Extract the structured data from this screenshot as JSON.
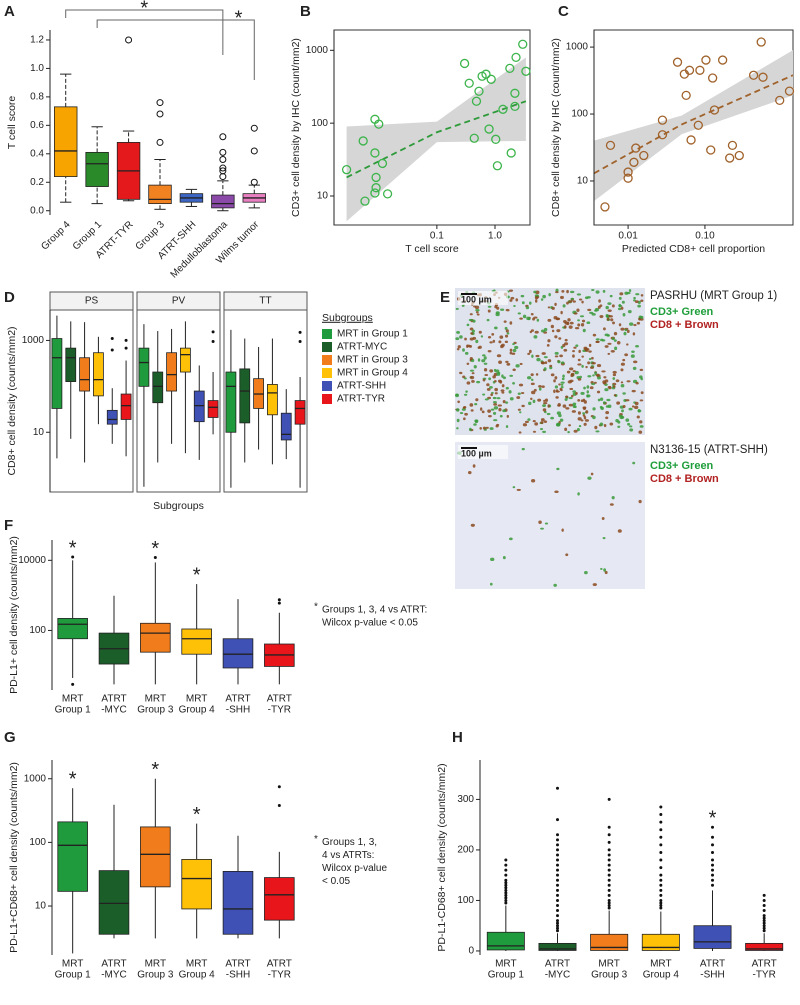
{
  "chart_data": [
    {
      "panel": "A",
      "type": "box",
      "ylabel": "T cell score",
      "categories": [
        "Group 4",
        "Group 1",
        "ATRT-TYR",
        "Group 3",
        "ATRT-SHH",
        "Medulloblastoma",
        "Wilms tumor"
      ],
      "colors": [
        "#f7a400",
        "#2a8a2a",
        "#e3191c",
        "#f08222",
        "#3d66c4",
        "#8b4aa8",
        "#e87fc0"
      ],
      "stats": [
        [
          0.06,
          0.24,
          0.42,
          0.73,
          0.96
        ],
        [
          0.05,
          0.17,
          0.33,
          0.41,
          0.59
        ],
        [
          0.07,
          0.08,
          0.28,
          0.48,
          0.56
        ],
        [
          0.01,
          0.05,
          0.08,
          0.18,
          0.36
        ],
        [
          0.03,
          0.06,
          0.09,
          0.12,
          0.15
        ],
        [
          0,
          0.02,
          0.05,
          0.11,
          0.21
        ],
        [
          0.02,
          0.06,
          0.09,
          0.12,
          0.18
        ]
      ],
      "outliers": [
        [],
        [],
        [
          1.2
        ],
        [
          0.48,
          0.68,
          0.76
        ],
        [],
        [
          0.24,
          0.28,
          0.3,
          0.36,
          0.41,
          0.52
        ],
        [
          0.2,
          0.42,
          0.58
        ]
      ],
      "outlier_marker": "open",
      "whisker_style": "dashed",
      "ylim": [
        -0.03,
        1.27
      ],
      "yticks": [
        {
          "value": 0,
          "label": "0.0"
        },
        0.2,
        0.4,
        0.6,
        0.8,
        {
          "value": 1,
          "label": "1.0"
        },
        1.2
      ],
      "annotations": [
        "*",
        "*"
      ]
    },
    {
      "panel": "B",
      "type": "scatter",
      "xlabel": "T cell score",
      "ylabel": "CD3+ cell density by IHC (count/mm2)",
      "color": "#3cb44b",
      "fit_color": "#2e9a3a",
      "band_color": "#d6d6d6",
      "x": [
        0.0028,
        0.0054,
        0.0058,
        0.0086,
        0.009,
        0.009,
        0.0086,
        0.0116,
        0.0142,
        0.0086,
        0.01,
        0.3,
        0.36,
        0.53,
        0.6,
        0.7,
        0.86,
        0.48,
        1.8,
        2.3,
        3.0,
        3.4,
        0.79,
        1.03,
        2.2,
        2.2,
        1.37,
        0.44,
        1.1,
        1.9
      ],
      "y": [
        23,
        57,
        8.5,
        39,
        18,
        13,
        11,
        28,
        10.7,
        113,
        97,
        660,
        353,
        274,
        440,
        470,
        400,
        200,
        565,
        800,
        1210,
        515,
        83,
        60,
        257,
        170,
        155,
        62,
        26,
        39
      ],
      "xlog": true,
      "ylog": true,
      "xlim": [
        0.0017,
        4
      ],
      "ylim": [
        4,
        1900
      ],
      "xticks": [
        0.1,
        {
          "value": 1,
          "label": "1.0"
        }
      ],
      "yticks": [
        10,
        100,
        1000
      ],
      "fit": {
        "x": [
          0.0028,
          0.1,
          3.4
        ],
        "y": [
          18,
          75,
          200
        ],
        "lower": [
          4.5,
          55,
          57
        ],
        "upper": [
          90,
          105,
          800
        ]
      }
    },
    {
      "panel": "C",
      "type": "scatter",
      "xlabel": "Predicted CD8+ cell proportion",
      "ylabel": "CD8+ cell density by IHC (count/mm2)",
      "color": "#a0622b",
      "fit_color": "#a0622b",
      "band_color": "#d6d6d6",
      "x": [
        0.005,
        0.0059,
        0.0119,
        0.0126,
        0.01,
        0.01,
        0.016,
        0.028,
        0.028,
        0.044,
        0.054,
        0.063,
        0.086,
        0.103,
        0.126,
        0.17,
        0.133,
        0.082,
        0.066,
        0.119,
        0.228,
        0.21,
        0.28,
        0.54,
        0.57,
        0.94,
        1.26,
        0.43,
        0.057
      ],
      "y": [
        4.1,
        34,
        19,
        31,
        13.6,
        11,
        24,
        49,
        81,
        595,
        395,
        450,
        450,
        640,
        345,
        640,
        115,
        68,
        41,
        29,
        34,
        22,
        24,
        1190,
        355,
        160,
        220,
        380,
        190
      ],
      "xlog": true,
      "ylog": true,
      "xlim": [
        0.0036,
        1.4
      ],
      "ylim": [
        2.2,
        1800
      ],
      "xticks": [
        0.01,
        {
          "value": 0.1,
          "label": "0.10"
        }
      ],
      "yticks": [
        10,
        100,
        1000
      ],
      "fit": {
        "x": [
          0.0036,
          0.05,
          1.4
        ],
        "y": [
          13,
          70,
          380
        ],
        "lower": [
          5,
          50,
          190
        ],
        "upper": [
          40,
          95,
          900
        ]
      }
    },
    {
      "panel": "D",
      "type": "box",
      "facets": [
        "PS",
        "PV",
        "TT"
      ],
      "xlabel": "Subgroups",
      "ylabel": "CD8+ cell density (counts/mm2)",
      "legend_title": "Subgroups",
      "ylog": true,
      "ylim": [
        0.5,
        4600
      ],
      "yticks": [
        10,
        1000
      ],
      "outlier_marker": "dot",
      "series": [
        {
          "name": "MRT in Group 1",
          "color": "#1f9a3c",
          "stats": [
            [
              2.7,
              33,
              420,
              1100,
              3470
            ],
            [
              0.65,
              100,
              330,
              680,
              2260
            ],
            [
              0.62,
              10,
              100,
              205,
              1700
            ]
          ],
          "outliers": [
            [],
            [],
            []
          ]
        },
        {
          "name": "ATRT-MYC",
          "color": "#1b5e2a",
          "stats": [
            [
              7.2,
              127,
              420,
              680,
              2600
            ],
            [
              2.2,
              44,
              100,
              205,
              1600
            ],
            [
              2.2,
              16,
              79,
              240,
              1100
            ]
          ],
          "outliers": [
            [],
            [],
            []
          ]
        },
        {
          "name": "MRT in Group 3",
          "color": "#f07c1b",
          "stats": [
            [
              2.2,
              79,
              140,
              420,
              2500
            ],
            [
              5.6,
              79,
              180,
              540,
              1780
            ],
            [
              4.2,
              33,
              68,
              147,
              720
            ]
          ],
          "outliers": [
            [],
            [],
            []
          ]
        },
        {
          "name": "MRT in Group 4",
          "color": "#ffc107",
          "stats": [
            [
              15,
              62,
              140,
              540,
              1200
            ],
            [
              3.5,
              205,
              490,
              680,
              2600
            ],
            [
              2,
              24,
              72,
              110,
              1100
            ]
          ],
          "outliers": [
            [],
            [],
            []
          ]
        },
        {
          "name": "ATRT-SHH",
          "color": "#3f51b5",
          "stats": [
            [
              5.6,
              15,
              19,
              30,
              91
            ],
            [
              2.5,
              17,
              38,
              79,
              285
            ],
            [
              2.6,
              6.8,
              9,
              26,
              87
            ]
          ],
          "outliers": [
            [
              620,
              1100
            ],
            [],
            []
          ]
        },
        {
          "name": "ATRT-TYR",
          "color": "#e8161b",
          "stats": [
            [
              3,
              19,
              38,
              68,
              365
            ],
            [
              9,
              21,
              35,
              49,
              205
            ],
            [
              0.62,
              15,
              33,
              49,
              160
            ]
          ],
          "outliers": [
            [
              680,
              1000
            ],
            [
              950,
              1540
            ],
            [
              950,
              1500
            ]
          ]
        }
      ]
    },
    {
      "panel": "F",
      "type": "box",
      "ylabel": "PD-L1+ cell density (counts/mm2)",
      "categories": [
        [
          "MRT",
          "Group 1"
        ],
        [
          "ATRT",
          "-MYC"
        ],
        [
          "MRT",
          "Group 3"
        ],
        [
          "MRT",
          "Group 4"
        ],
        [
          "ATRT",
          "-SHH"
        ],
        [
          "ATRT",
          "-TYR"
        ]
      ],
      "colors": [
        "#1f9a3c",
        "#1b5e2a",
        "#f07c1b",
        "#ffc107",
        "#3f51b5",
        "#e8161b"
      ],
      "stats": [
        [
          4.4,
          58,
          150,
          220,
          10000
        ],
        [
          2.9,
          11,
          30,
          84,
          975
        ],
        [
          2.9,
          24,
          84,
          160,
          8700
        ],
        [
          2.9,
          21,
          58,
          110,
          2100
        ],
        [
          2.9,
          8.5,
          21,
          58,
          780
        ],
        [
          2.9,
          9.4,
          20,
          41,
          320
        ]
      ],
      "outliers": [
        [
          12400,
          2.9
        ],
        [],
        [
          12000
        ],
        [],
        [],
        [
          750,
          600
        ]
      ],
      "outlier_marker": "dot",
      "markers": [
        "*",
        null,
        "*",
        "*",
        null,
        null
      ],
      "ylog": true,
      "ylim": [
        2,
        38000
      ],
      "yticks": [
        100,
        10000
      ],
      "note": [
        "*",
        "Groups 1, 3, 4 vs ATRT:",
        "Wilcox p-value < 0.05"
      ]
    },
    {
      "panel": "G",
      "type": "box",
      "ylabel": "PD-L1+CD68+ cell density (counts/mm2)",
      "categories": [
        [
          "MRT",
          "Group 1"
        ],
        [
          "ATRT",
          "-MYC"
        ],
        [
          "MRT",
          "Group 3"
        ],
        [
          "MRT",
          "Group 4"
        ],
        [
          "ATRT",
          "-SHH"
        ],
        [
          "ATRT",
          "-TYR"
        ]
      ],
      "colors": [
        "#1f9a3c",
        "#1b5e2a",
        "#f07c1b",
        "#ffc107",
        "#3f51b5",
        "#e8161b"
      ],
      "stats": [
        [
          1.8,
          17,
          90,
          210,
          710
        ],
        [
          3.1,
          3.6,
          11,
          36,
          390
        ],
        [
          3.1,
          20,
          65,
          175,
          1000
        ],
        [
          3.1,
          9,
          27,
          54,
          197
        ],
        [
          3.1,
          3.6,
          9,
          35,
          127
        ],
        [
          3.1,
          6,
          15,
          28,
          71
        ]
      ],
      "outliers": [
        [],
        [],
        [],
        [],
        [],
        [
          750,
          380
        ]
      ],
      "outlier_marker": "dot",
      "markers": [
        "*",
        null,
        "*",
        "*",
        null,
        null
      ],
      "ylog": true,
      "ylim": [
        1.7,
        1970
      ],
      "yticks": [
        10,
        100,
        1000
      ],
      "note": [
        "*",
        "Groups 1, 3,",
        "4 vs ATRTs:",
        "Wilcox p-value",
        "< 0.05"
      ]
    },
    {
      "panel": "H",
      "type": "box",
      "ylabel": "PD-L1-CD68+ cell density (counts/mm2)",
      "categories": [
        [
          "MRT",
          "Group 1"
        ],
        [
          "ATRT",
          "-MYC"
        ],
        [
          "MRT",
          "Group 3"
        ],
        [
          "MRT",
          "Group 4"
        ],
        [
          "ATRT",
          "-SHH"
        ],
        [
          "ATRT",
          "-TYR"
        ]
      ],
      "colors": [
        "#1f9a3c",
        "#1b5e2a",
        "#f07c1b",
        "#ffc107",
        "#3f51b5",
        "#e8161b"
      ],
      "stats": [
        [
          0,
          2,
          10,
          37,
          90
        ],
        [
          0,
          1,
          4,
          15,
          35
        ],
        [
          0,
          1,
          7,
          33,
          80
        ],
        [
          0,
          1,
          7,
          33,
          78
        ],
        [
          0,
          5,
          18,
          50,
          120
        ],
        [
          0,
          1,
          4,
          15,
          35
        ]
      ],
      "outliers": [
        [
          95,
          100,
          105,
          110,
          115,
          120,
          125,
          130,
          135,
          140,
          150,
          160,
          170,
          180
        ],
        [
          40,
          45,
          50,
          55,
          60,
          70,
          80,
          90,
          100,
          110,
          120,
          130,
          140,
          150,
          160,
          170,
          180,
          190,
          200,
          210,
          220,
          230,
          260,
          322
        ],
        [
          85,
          90,
          95,
          100,
          110,
          120,
          130,
          140,
          150,
          160,
          170,
          180,
          190,
          200,
          215,
          230,
          245,
          300
        ],
        [
          85,
          90,
          95,
          100,
          110,
          120,
          130,
          140,
          150,
          165,
          180,
          195,
          210,
          225,
          240,
          255,
          270,
          285
        ],
        [
          130,
          140,
          150,
          160,
          170,
          180,
          195,
          210,
          225,
          245
        ],
        [
          40,
          45,
          50,
          55,
          60,
          65,
          70,
          80,
          90,
          100,
          110
        ]
      ],
      "outlier_marker": "dot",
      "markers": [
        null,
        null,
        null,
        null,
        "*",
        null
      ],
      "ylim": [
        -8,
        378
      ],
      "yticks": [
        0,
        100,
        200,
        300
      ]
    }
  ],
  "panel_e": {
    "panel": "E",
    "images": [
      {
        "title": "PASRHU (MRT Group 1)",
        "scale_bar": "100 µm",
        "stains": [
          {
            "text": "CD3+ Green",
            "color": "#1e9e3a"
          },
          {
            "text": "CD8 + Brown",
            "color": "#b22222"
          }
        ]
      },
      {
        "title": "N3136-15 (ATRT-SHH)",
        "scale_bar": "100 µm",
        "stains": [
          {
            "text": "CD3+ Green",
            "color": "#1e9e3a"
          },
          {
            "text": "CD8 + Brown",
            "color": "#b22222"
          }
        ]
      }
    ]
  }
}
